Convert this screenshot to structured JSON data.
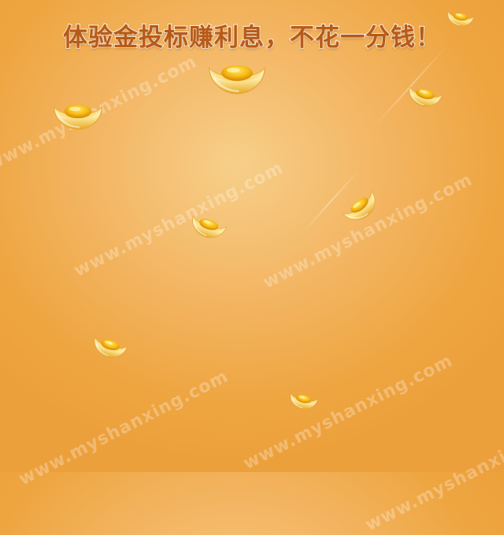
{
  "headline": {
    "text": "体验金投标赚利息，不花一分钱！"
  },
  "watermark": {
    "text": "www.myshanxing.com"
  },
  "colors": {
    "background_center": "#f7cf8a",
    "background_edge": "#eca03c",
    "headline_fill": "#b85a17",
    "headline_outline": "#fff4e0",
    "gold_light": "#fff6c8",
    "gold_mid": "#f7c531",
    "gold_dark": "#d88a0a"
  },
  "decorations": {
    "icon_name": "gold-ingot-icon",
    "count": 10
  }
}
